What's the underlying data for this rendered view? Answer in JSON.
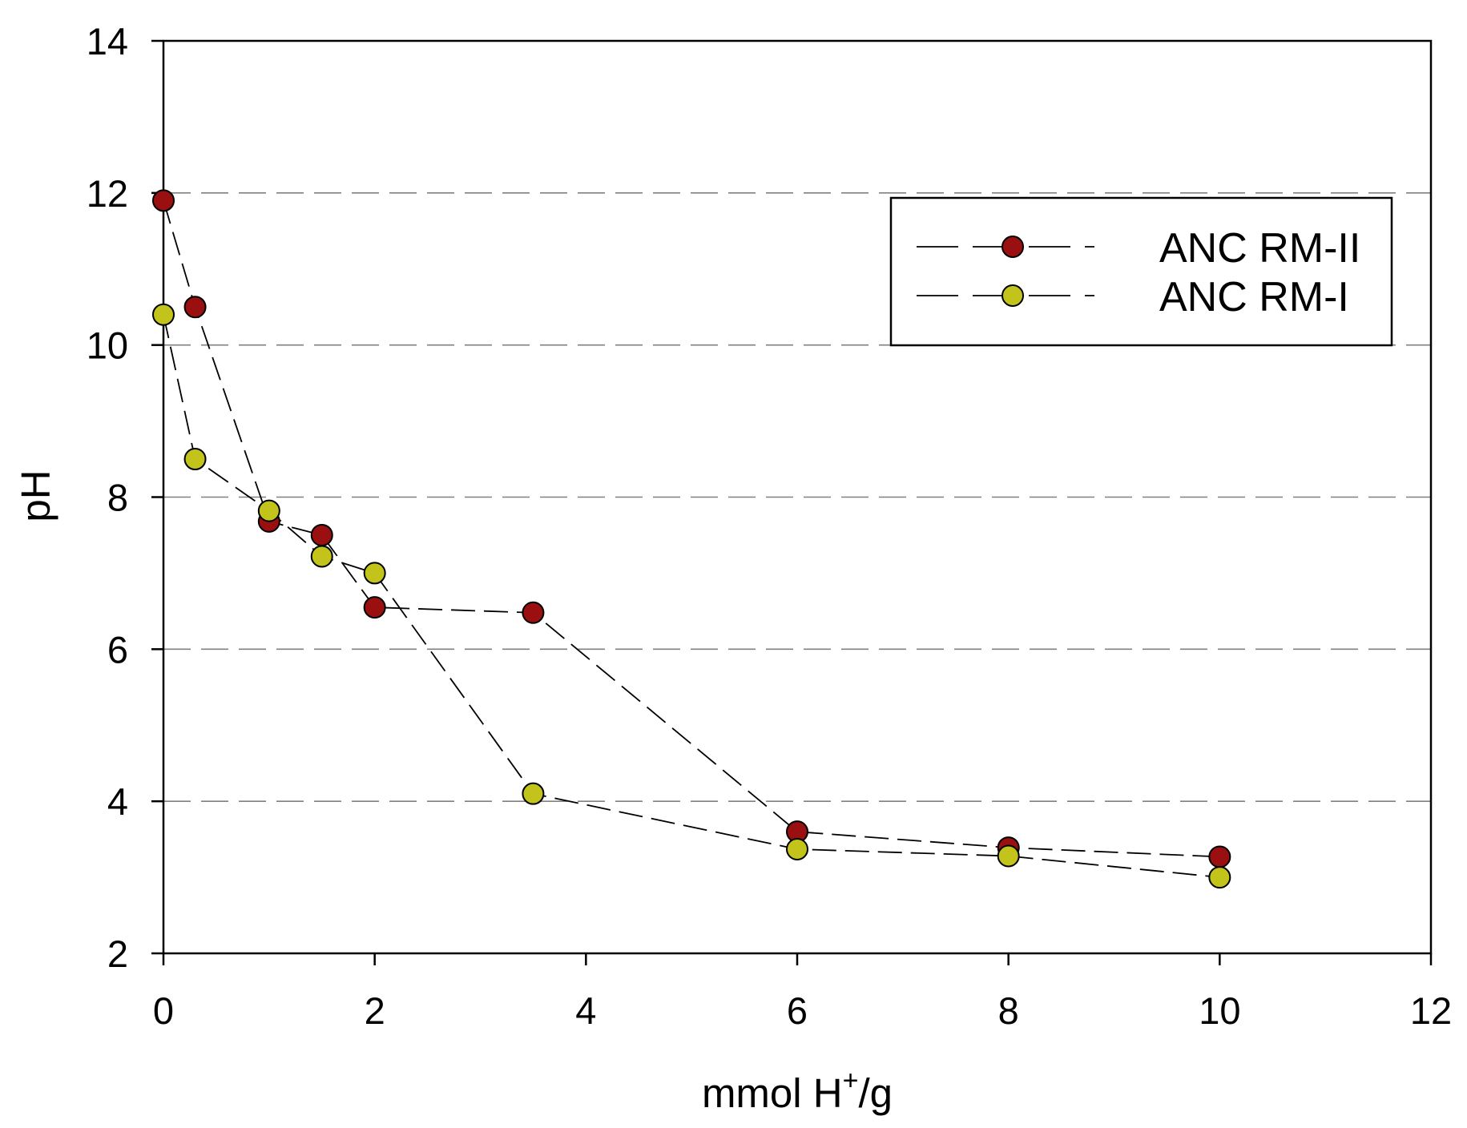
{
  "chart_data": {
    "type": "line",
    "title": "",
    "xlabel": {
      "base": "mmol H",
      "sup": "+",
      "tail": "/g"
    },
    "ylabel": "pH",
    "xlim": [
      0,
      12
    ],
    "ylim": [
      2,
      14
    ],
    "xticks": [
      0,
      2,
      4,
      6,
      8,
      10,
      12
    ],
    "yticks": [
      2,
      4,
      6,
      8,
      10,
      12,
      14
    ],
    "grid": {
      "axis": "y",
      "style": "dashed",
      "values": [
        4,
        6,
        8,
        10,
        12
      ],
      "color": "#808080"
    },
    "legend": {
      "position": "top-right"
    },
    "line_color": "#000000",
    "series": [
      {
        "name": "ANC RM-II",
        "color": "#9a0f0f",
        "x": [
          0,
          0.3,
          1,
          1.5,
          2,
          3.5,
          6,
          8,
          10
        ],
        "y": [
          11.9,
          10.5,
          7.68,
          7.5,
          6.55,
          6.48,
          3.6,
          3.39,
          3.27
        ]
      },
      {
        "name": "ANC RM-I",
        "color": "#c2c41b",
        "x": [
          0,
          0.3,
          1,
          1.5,
          2,
          3.5,
          6,
          8,
          10
        ],
        "y": [
          10.4,
          8.5,
          7.82,
          7.22,
          7.0,
          4.1,
          3.37,
          3.28,
          3.0
        ]
      }
    ]
  }
}
